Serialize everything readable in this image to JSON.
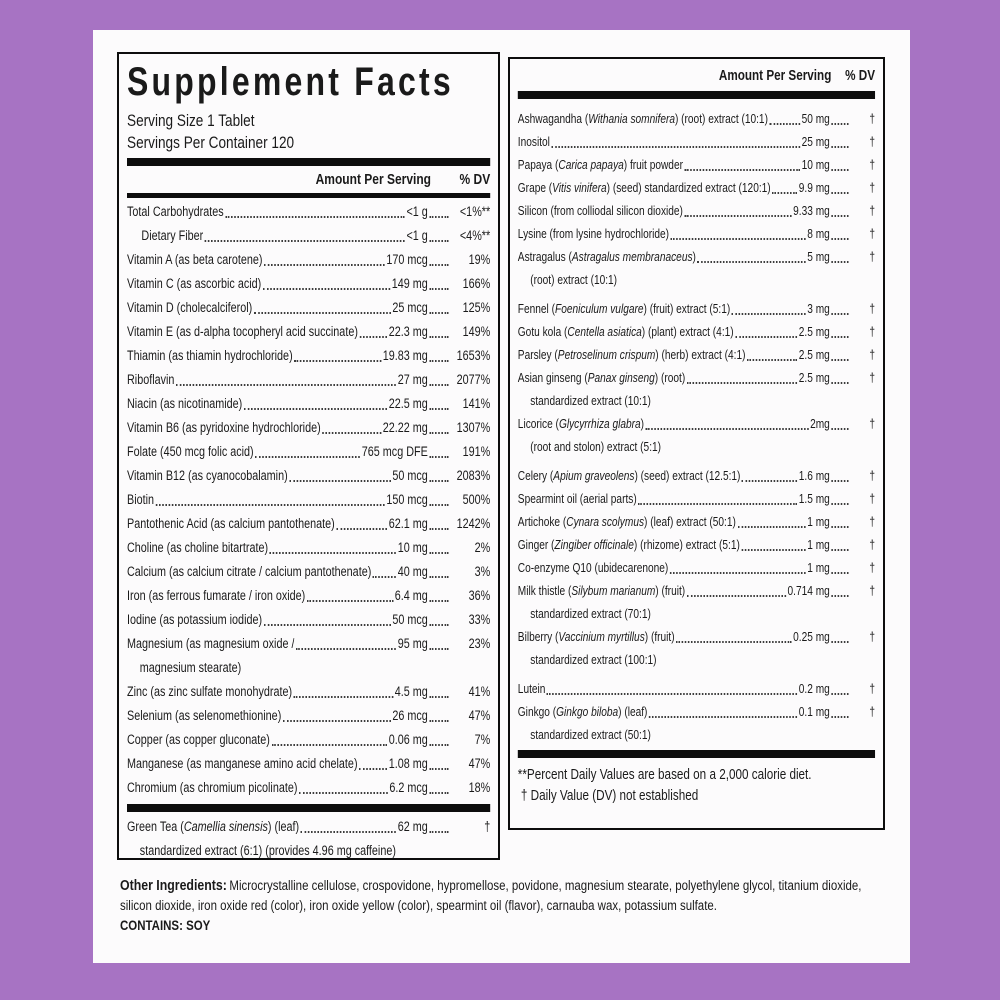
{
  "colors": {
    "background_purple": "#a773c3",
    "label_background": "#fcfbfc",
    "text": "#1a1a1a",
    "bar_black": "#0d0d0d"
  },
  "title": "Supplement Facts",
  "serving_size": "Serving Size 1 Tablet",
  "servings_per_container": "Servings Per Container 120",
  "header": {
    "amount": "Amount Per Serving",
    "dv": "% DV"
  },
  "left_rows": [
    {
      "pre": "Total Carbohydrates",
      "amount": "<1 g",
      "dv": "<1%**"
    },
    {
      "pre": "Dietary Fiber",
      "amount": "<1 g",
      "dv": "<4%**",
      "indent": true
    },
    {
      "pre": "Vitamin A (as beta carotene)",
      "amount": "170 mcg",
      "dv": "19%"
    },
    {
      "pre": "Vitamin C (as ascorbic acid)",
      "amount": "149 mg",
      "dv": "166%"
    },
    {
      "pre": "Vitamin D (cholecalciferol)",
      "amount": "25 mcg",
      "dv": "125%"
    },
    {
      "pre": "Vitamin E (as d-alpha tocopheryl acid succinate)",
      "amount": "22.3 mg",
      "dv": "149%"
    },
    {
      "pre": "Thiamin (as thiamin hydrochloride)",
      "amount": "19.83 mg",
      "dv": "1653%"
    },
    {
      "pre": "Riboflavin",
      "amount": "27 mg",
      "dv": "2077%"
    },
    {
      "pre": "Niacin (as nicotinamide)",
      "amount": "22.5 mg",
      "dv": "141%"
    },
    {
      "pre": "Vitamin B6 (as pyridoxine hydrochloride)",
      "amount": "22.22 mg",
      "dv": "1307%"
    },
    {
      "pre": "Folate (450 mcg folic acid)",
      "amount": "765 mcg DFE",
      "dv": "191%"
    },
    {
      "pre": "Vitamin B12 (as cyanocobalamin)",
      "amount": "50 mcg",
      "dv": "2083%"
    },
    {
      "pre": "Biotin",
      "amount": "150 mcg",
      "dv": "500%"
    },
    {
      "pre": "Pantothenic Acid (as calcium pantothenate)",
      "amount": "62.1 mg",
      "dv": "1242%"
    },
    {
      "pre": "Choline (as choline bitartrate)",
      "amount": "10 mg",
      "dv": "2%"
    },
    {
      "pre": "Calcium (as calcium citrate / calcium pantothenate)",
      "amount": "40 mg",
      "dv": "3%"
    },
    {
      "pre": "Iron (as ferrous fumarate / iron oxide)",
      "amount": "6.4 mg",
      "dv": "36%"
    },
    {
      "pre": "Iodine (as potassium iodide)",
      "amount": "50 mcg",
      "dv": "33%"
    },
    {
      "pre": "Magnesium (as magnesium oxide /",
      "amount": "95 mg",
      "dv": "23%",
      "line2": "magnesium stearate)"
    },
    {
      "pre": "Zinc (as zinc sulfate monohydrate)",
      "amount": "4.5 mg",
      "dv": "41%"
    },
    {
      "pre": "Selenium (as selenomethionine)",
      "amount": "26 mcg",
      "dv": "47%"
    },
    {
      "pre": "Copper (as copper gluconate)",
      "amount": "0.06 mg",
      "dv": "7%"
    },
    {
      "pre": "Manganese (as manganese amino acid chelate)",
      "amount": "1.08 mg",
      "dv": "47%"
    },
    {
      "pre": "Chromium (as chromium picolinate)",
      "amount": "6.2 mcg",
      "dv": "18%"
    }
  ],
  "left_footer_rows": [
    {
      "pre": "Green Tea (",
      "it": "Camellia sinensis",
      "post": ") (leaf)",
      "amount": "62 mg",
      "dv": "†",
      "line2": "standardized extract (6:1) (provides 4.96 mg caffeine)"
    }
  ],
  "right_rows": [
    {
      "pre": "Ashwagandha (",
      "it": "Withania somnifera",
      "post": ") (root) extract (10:1)",
      "amount": "50 mg",
      "dv": "†"
    },
    {
      "pre": "Inositol",
      "amount": "25 mg",
      "dv": "†"
    },
    {
      "pre": "Papaya (",
      "it": "Carica papaya",
      "post": ") fruit powder",
      "amount": "10 mg",
      "dv": "†"
    },
    {
      "pre": "Grape (",
      "it": "Vitis vinifera",
      "post": ") (seed) standardized extract (120:1)",
      "amount": "9.9 mg",
      "dv": "†"
    },
    {
      "pre": "Silicon (from colliodal silicon dioxide)",
      "amount": "9.33 mg",
      "dv": "†"
    },
    {
      "pre": "Lysine (from lysine hydrochloride)",
      "amount": "8 mg",
      "dv": "†"
    },
    {
      "pre": "Astragalus (",
      "it": "Astragalus membranaceus",
      "post": ")",
      "amount": "5 mg",
      "dv": "†",
      "line2": "(root) extract (10:1)"
    },
    {
      "pre": "Fennel (",
      "it": "Foeniculum vulgare",
      "post": ") (fruit) extract (5:1)",
      "amount": "3 mg",
      "dv": "†",
      "gap": true
    },
    {
      "pre": "Gotu kola (",
      "it": "Centella asiatica",
      "post": ") (plant) extract (4:1)",
      "amount": "2.5 mg",
      "dv": "†"
    },
    {
      "pre": "Parsley (",
      "it": "Petroselinum crispum",
      "post": ") (herb) extract (4:1)",
      "amount": "2.5 mg",
      "dv": "†"
    },
    {
      "pre": "Asian ginseng (",
      "it": "Panax ginseng",
      "post": ") (root)",
      "amount": "2.5 mg",
      "dv": "†",
      "line2": "standardized extract (10:1)"
    },
    {
      "pre": "Licorice (",
      "it": "Glycyrrhiza glabra",
      "post": ")",
      "amount": "2mg",
      "dv": "†",
      "line2": "(root and stolon) extract (5:1)"
    },
    {
      "pre": "Celery (",
      "it": "Apium graveolens",
      "post": ") (seed) extract (12.5:1)",
      "amount": "1.6 mg",
      "dv": "†",
      "gap": true
    },
    {
      "pre": "Spearmint oil (aerial parts)",
      "amount": "1.5 mg",
      "dv": "†"
    },
    {
      "pre": "Artichoke (",
      "it": "Cynara scolymus",
      "post": ") (leaf) extract (50:1)",
      "amount": "1 mg",
      "dv": "†"
    },
    {
      "pre": "Ginger (",
      "it": "Zingiber officinale",
      "post": ") (rhizome) extract (5:1)",
      "amount": "1 mg",
      "dv": "†"
    },
    {
      "pre": "Co-enzyme Q10 (ubidecarenone)",
      "amount": "1 mg",
      "dv": "†"
    },
    {
      "pre": "Milk thistle (",
      "it": "Silybum marianum",
      "post": ") (fruit)",
      "amount": "0.714 mg",
      "dv": "†",
      "line2": "standardized extract (70:1)"
    },
    {
      "pre": "Bilberry (",
      "it": "Vaccinium myrtillus",
      "post": ") (fruit)",
      "amount": "0.25 mg",
      "dv": "†",
      "line2": "standardized extract (100:1)"
    },
    {
      "pre": "Lutein",
      "amount": "0.2 mg",
      "dv": "†",
      "gap": true
    },
    {
      "pre": "Ginkgo (",
      "it": "Ginkgo biloba",
      "post": ") (leaf)",
      "amount": "0.1 mg",
      "dv": "†",
      "line2": "standardized extract (50:1)"
    }
  ],
  "footnotes": [
    "**Percent Daily Values are based on a 2,000 calorie diet.",
    "† Daily Value (DV) not established"
  ],
  "other_ingredients": {
    "label": "Other Ingredients:",
    "text": "Microcrystalline cellulose, crospovidone, hypromellose, povidone, magnesium stearate, polyethylene glycol, titanium dioxide, silicon dioxide, iron oxide red (color), iron oxide yellow (color), spearmint oil (flavor), carnauba wax, potassium sulfate.",
    "contains": "CONTAINS: SOY"
  }
}
